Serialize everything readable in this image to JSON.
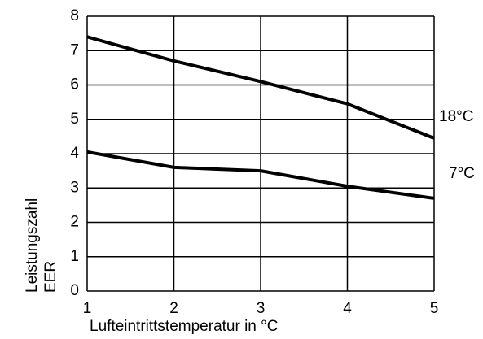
{
  "chart_data": {
    "type": "line",
    "xlabel": "Lufteintrittstemperatur in °C",
    "ylabel": [
      "Leistungszahl",
      "EER"
    ],
    "x": [
      1,
      2,
      3,
      4,
      5
    ],
    "series": [
      {
        "name": "18°C",
        "color": "#000000",
        "values": [
          7.4,
          6.7,
          6.1,
          5.45,
          4.45
        ]
      },
      {
        "name": "7°C",
        "color": "#000000",
        "values": [
          4.05,
          3.6,
          3.5,
          3.05,
          2.7
        ]
      }
    ],
    "xlim": [
      1,
      5
    ],
    "xticks": [
      1,
      2,
      3,
      4,
      5
    ],
    "ylim": [
      0,
      8
    ],
    "yticks": [
      0,
      1,
      2,
      3,
      4,
      5,
      6,
      7,
      8
    ],
    "grid": true
  }
}
